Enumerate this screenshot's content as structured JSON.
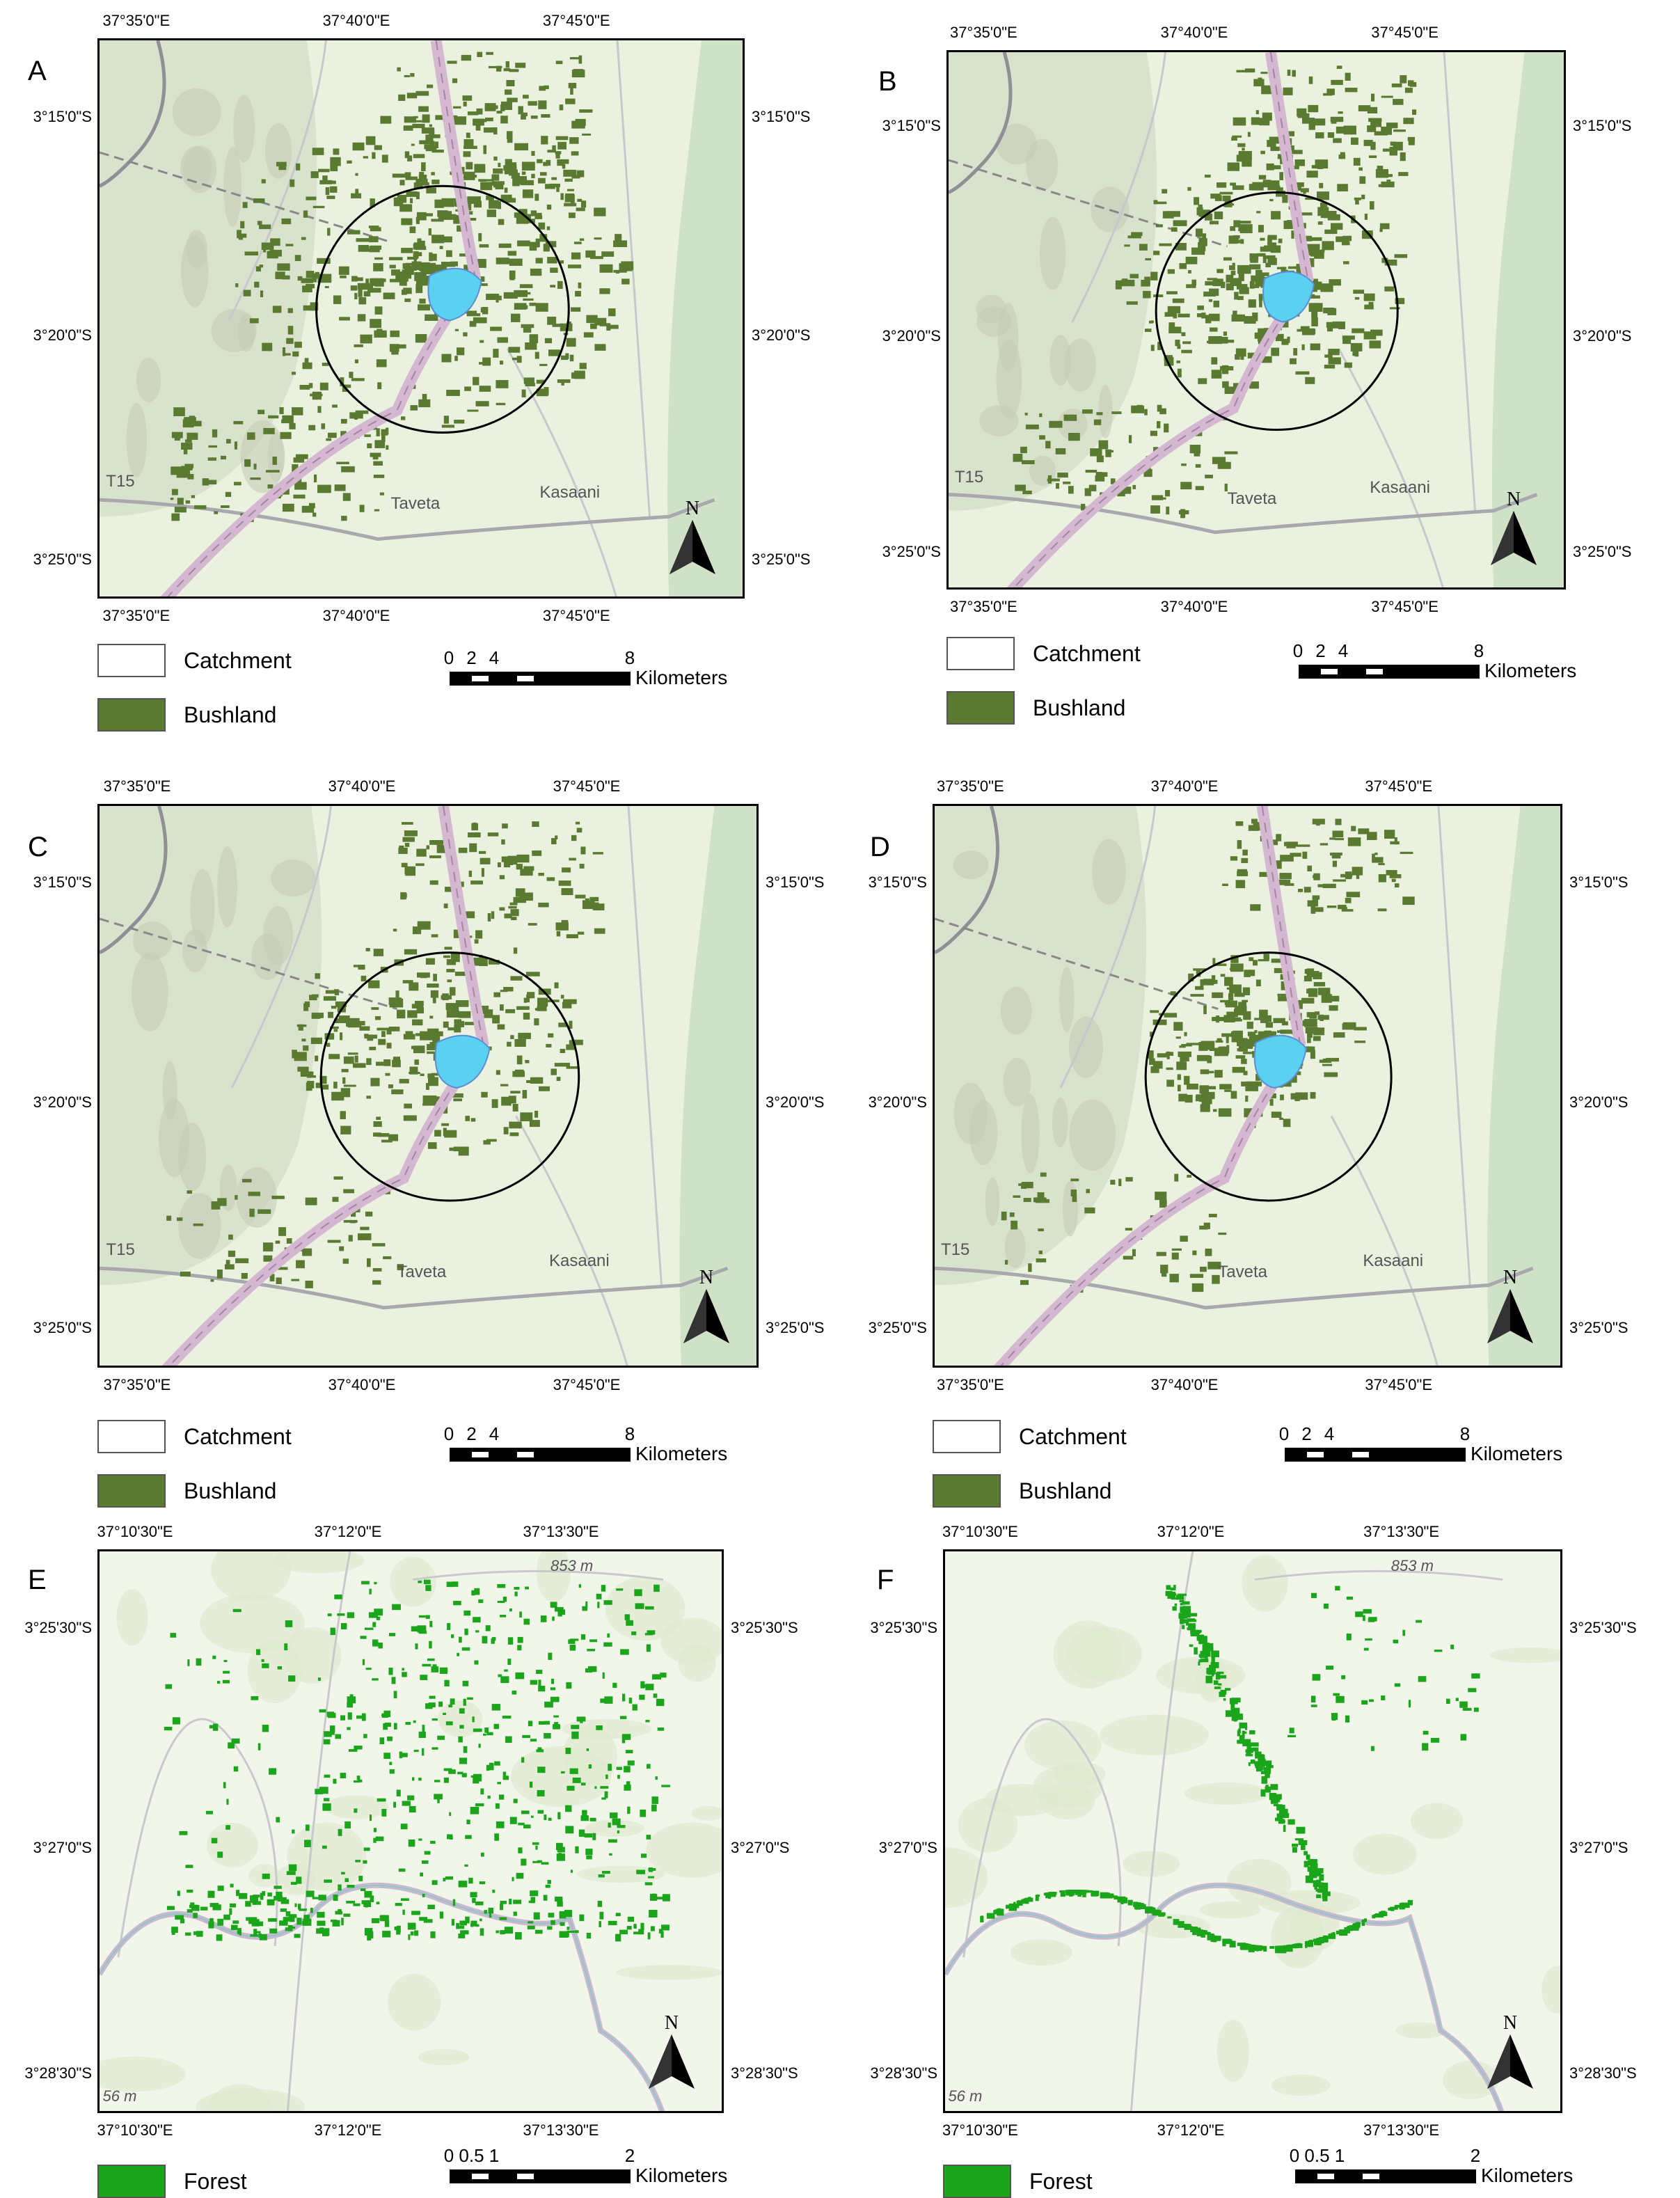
{
  "panels": [
    {
      "letter": "A",
      "lon_ticks": [
        "37°35'0\"E",
        "37°40'0\"E",
        "37°45'0\"E"
      ],
      "lat_ticks": [
        "3°15'0\"S",
        "3°20'0\"S",
        "3°25'0\"S"
      ],
      "legend": [
        {
          "label": "Catchment",
          "color": "#ffffff"
        },
        {
          "label": "Bushland",
          "color": "#5a7a32"
        }
      ],
      "scale": {
        "numbers": [
          "0",
          "2",
          "4",
          "8"
        ],
        "unit": "Kilometers"
      },
      "north": "N",
      "places": {
        "road": "T15",
        "town1": "Taveta",
        "town2": "Kasaani"
      }
    },
    {
      "letter": "B",
      "lon_ticks": [
        "37°35'0\"E",
        "37°40'0\"E",
        "37°45'0\"E"
      ],
      "lat_ticks": [
        "3°15'0\"S",
        "3°20'0\"S",
        "3°25'0\"S"
      ],
      "legend": [
        {
          "label": "Catchment",
          "color": "#ffffff"
        },
        {
          "label": "Bushland",
          "color": "#5a7a32"
        }
      ],
      "scale": {
        "numbers": [
          "0",
          "2",
          "4",
          "8"
        ],
        "unit": "Kilometers"
      },
      "north": "N",
      "places": {
        "road": "T15",
        "town1": "Taveta",
        "town2": "Kasaani"
      }
    },
    {
      "letter": "C",
      "lon_ticks": [
        "37°35'0\"E",
        "37°40'0\"E",
        "37°45'0\"E"
      ],
      "lat_ticks": [
        "3°15'0\"S",
        "3°20'0\"S",
        "3°25'0\"S"
      ],
      "legend": [
        {
          "label": "Catchment",
          "color": "#ffffff"
        },
        {
          "label": "Bushland",
          "color": "#5a7a32"
        }
      ],
      "scale": {
        "numbers": [
          "0",
          "2",
          "4",
          "8"
        ],
        "unit": "Kilometers"
      },
      "north": "N",
      "places": {
        "road": "T15",
        "town1": "Taveta",
        "town2": "Kasaani"
      }
    },
    {
      "letter": "D",
      "lon_ticks": [
        "37°35'0\"E",
        "37°40'0\"E",
        "37°45'0\"E"
      ],
      "lat_ticks": [
        "3°15'0\"S",
        "3°20'0\"S",
        "3°25'0\"S"
      ],
      "legend": [
        {
          "label": "Catchment",
          "color": "#ffffff"
        },
        {
          "label": "Bushland",
          "color": "#5a7a32"
        }
      ],
      "scale": {
        "numbers": [
          "0",
          "2",
          "4",
          "8"
        ],
        "unit": "Kilometers"
      },
      "north": "N",
      "places": {
        "road": "T15",
        "town1": "Taveta",
        "town2": "Kasaani"
      }
    },
    {
      "letter": "E",
      "lon_ticks": [
        "37°10'30\"E",
        "37°12'0\"E",
        "37°13'30\"E"
      ],
      "lat_ticks": [
        "3°25'30\"S",
        "3°27'0\"S",
        "3°28'30\"S"
      ],
      "legend": [
        {
          "label": "Forest",
          "color": "#1aa51a"
        }
      ],
      "scale": {
        "numbers": [
          "0",
          "0.5",
          "1",
          "2"
        ],
        "unit": "Kilometers"
      },
      "north": "N",
      "places": {
        "elev1": "853 m",
        "elev2": "56 m"
      }
    },
    {
      "letter": "F",
      "lon_ticks": [
        "37°10'30\"E",
        "37°12'0\"E",
        "37°13'30\"E"
      ],
      "lat_ticks": [
        "3°25'30\"S",
        "3°27'0\"S",
        "3°28'30\"S"
      ],
      "legend": [
        {
          "label": "Forest",
          "color": "#1aa51a"
        }
      ],
      "scale": {
        "numbers": [
          "0",
          "0.5",
          "1",
          "2"
        ],
        "unit": "Kilometers"
      },
      "north": "N",
      "places": {
        "elev1": "853 m",
        "elev2": "56 m"
      }
    }
  ]
}
